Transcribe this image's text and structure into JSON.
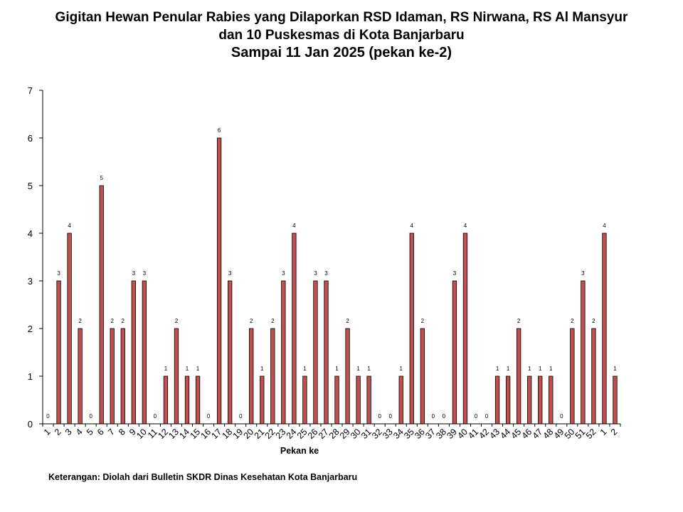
{
  "title_lines": [
    "Gigitan Hewan Penular Rabies yang Dilaporkan RSD Idaman, RS Nirwana, RS Al Mansyur",
    "dan 10 Puskesmas di Kota Banjarbaru",
    "Sampai 11 Jan 2025 (pekan ke-2)"
  ],
  "note": "Keterangan: Diolah dari Bulletin SKDR Dinas Kesehatan Kota Banjarbaru",
  "chart_data": {
    "type": "bar",
    "title": "Gigitan Hewan Penular Rabies yang Dilaporkan RSD Idaman, RS Nirwana, RS Al Mansyur dan 10 Puskesmas di Kota Banjarbaru Sampai 11 Jan 2025 (pekan ke-2)",
    "xlabel": "Pekan ke",
    "ylabel": "",
    "ylim": [
      0,
      7
    ],
    "yticks": [
      0,
      1,
      2,
      3,
      4,
      5,
      6,
      7
    ],
    "grid": false,
    "bar_color": "#c0504d",
    "categories": [
      "1",
      "2",
      "3",
      "4",
      "5",
      "6",
      "7",
      "8",
      "9",
      "10",
      "11",
      "12",
      "13",
      "14",
      "15",
      "16",
      "17",
      "18",
      "19",
      "20",
      "21",
      "22",
      "23",
      "24",
      "25",
      "26",
      "27",
      "28",
      "29",
      "30",
      "31",
      "32",
      "33",
      "34",
      "35",
      "36",
      "37",
      "38",
      "39",
      "40",
      "41",
      "42",
      "43",
      "44",
      "45",
      "46",
      "47",
      "48",
      "49",
      "50",
      "51",
      "52",
      "1",
      "2"
    ],
    "values": [
      0,
      3,
      4,
      2,
      0,
      5,
      2,
      2,
      3,
      3,
      0,
      1,
      2,
      1,
      1,
      0,
      6,
      3,
      0,
      2,
      1,
      2,
      3,
      4,
      1,
      3,
      3,
      1,
      2,
      1,
      1,
      0,
      0,
      1,
      4,
      2,
      0,
      0,
      3,
      4,
      0,
      0,
      1,
      1,
      2,
      1,
      1,
      1,
      0,
      2,
      3,
      2,
      4,
      1
    ]
  }
}
